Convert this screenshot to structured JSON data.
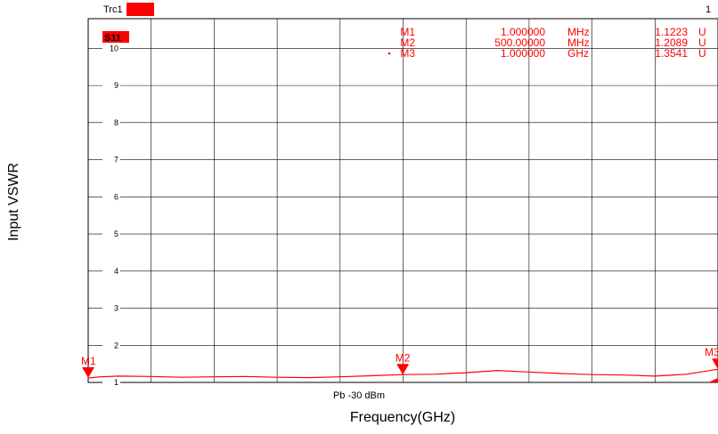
{
  "header": {
    "trace_label": "Trc1",
    "trace_color": "#ff0000",
    "right_label": "1"
  },
  "trace": {
    "name": "S11",
    "color": "#ff0000"
  },
  "footer": {
    "power_label": "Pb -30 dBm"
  },
  "axes": {
    "xlabel": "Frequency(GHz)",
    "ylabel": "Input VSWR"
  },
  "markers": [
    {
      "label": "M1",
      "freq": "1.000000",
      "unit": "MHz",
      "value": "1.1223",
      "value_unit": "U",
      "active": false
    },
    {
      "label": "M2",
      "freq": "500.00000",
      "unit": "MHz",
      "value": "1.2089",
      "value_unit": "U",
      "active": false
    },
    {
      "label": "M3",
      "freq": "1.000000",
      "unit": "GHz",
      "value": "1.3541",
      "value_unit": "U",
      "active": true
    }
  ],
  "chart_data": {
    "type": "line",
    "xlim": [
      0.001,
      1.0
    ],
    "ylim": [
      1,
      10.8
    ],
    "y_ticks": [
      1,
      2,
      3,
      4,
      5,
      6,
      7,
      8,
      9,
      10
    ],
    "grid": true,
    "series": [
      {
        "name": "S11",
        "color": "#ff0000",
        "x": [
          0.001,
          0.02,
          0.05,
          0.1,
          0.15,
          0.2,
          0.25,
          0.3,
          0.35,
          0.4,
          0.45,
          0.5,
          0.55,
          0.6,
          0.65,
          0.7,
          0.75,
          0.8,
          0.85,
          0.9,
          0.95,
          1.0
        ],
        "y": [
          1.12,
          1.15,
          1.17,
          1.16,
          1.14,
          1.15,
          1.16,
          1.14,
          1.13,
          1.15,
          1.18,
          1.21,
          1.22,
          1.26,
          1.32,
          1.28,
          1.24,
          1.21,
          1.2,
          1.17,
          1.22,
          1.354
        ]
      }
    ],
    "marker_points": [
      {
        "label": "M1",
        "x": 0.001,
        "y": 1.1223
      },
      {
        "label": "M2",
        "x": 0.5,
        "y": 1.2089
      },
      {
        "label": "M3",
        "x": 1.0,
        "y": 1.3541
      }
    ]
  }
}
